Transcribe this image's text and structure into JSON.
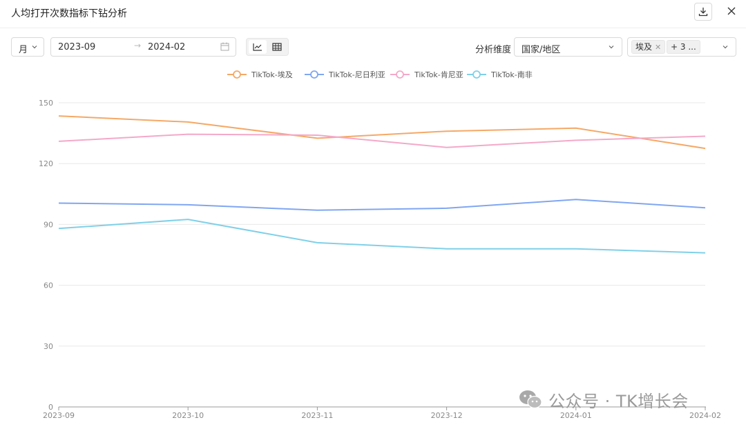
{
  "header": {
    "title": "人均打开次数指标下钻分析",
    "download_icon": "download-icon",
    "close_icon": "close-icon"
  },
  "filters": {
    "period": "月",
    "date_start": "2023-09",
    "date_separator": "→",
    "date_end": "2024-02",
    "dimension_label": "分析维度",
    "dimension_value": "国家/地区",
    "selected_tag": "埃及",
    "more_tag": "+ 3 ..."
  },
  "colors": {
    "egypt": "#f5a866",
    "nigeria": "#7fa6f2",
    "kenya": "#f4a8c8",
    "south_africa": "#7fd0e8",
    "grid": "#e8e8e8",
    "axis": "#999999"
  },
  "chart_data": {
    "type": "line",
    "categories": [
      "2023-09",
      "2023-10",
      "2023-11",
      "2023-12",
      "2024-01",
      "2024-02"
    ],
    "ylim": [
      0,
      150
    ],
    "yticks": [
      0,
      30,
      60,
      90,
      120,
      150
    ],
    "legend_position": "top-center",
    "grid": true,
    "series": [
      {
        "name": "TikTok-埃及",
        "color": "#f5a866",
        "values": [
          143.5,
          140.5,
          132.5,
          136,
          137.5,
          127.5
        ]
      },
      {
        "name": "TikTok-尼日利亚",
        "color": "#7fa6f2",
        "values": [
          100.5,
          99.7,
          97,
          98,
          102.3,
          98.2
        ]
      },
      {
        "name": "TikTok-肯尼亚",
        "color": "#f4a8c8",
        "values": [
          131,
          134.5,
          134,
          128,
          131.5,
          133.5
        ]
      },
      {
        "name": "TikTok-南非",
        "color": "#7fd0e8",
        "values": [
          88,
          92.5,
          81,
          78,
          78,
          76
        ]
      }
    ]
  },
  "watermark": {
    "text": "公众号 · TK增长会",
    "icon": "wechat-icon"
  }
}
